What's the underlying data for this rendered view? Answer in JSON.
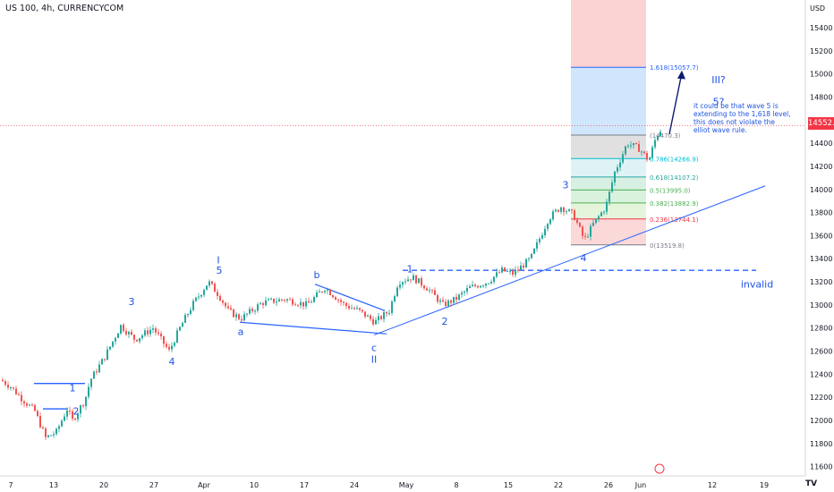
{
  "header": {
    "symbol": "US 100, 4h, CURRENCYCOM"
  },
  "price_tag": "14552.3",
  "note": "it could be that wave 5 is extending to the 1,618 level, this does not violate the elliot wave rule.",
  "logo": "TV",
  "colors": {
    "up": "#26a69a",
    "down": "#ef5350",
    "blue": "#2962ff",
    "label": "#1e53e5",
    "pricered": "#f23645"
  },
  "chart_data": {
    "type": "candlestick",
    "title": "US 100, 4h, CURRENCYCOM",
    "ylabel": "USD",
    "ylim": [
      11520,
      15640
    ],
    "y_ticks": [
      11600,
      11800,
      12000,
      12200,
      12400,
      12600,
      12800,
      13000,
      13200,
      13400,
      13600,
      13800,
      14000,
      14200,
      14400,
      14600,
      14800,
      15000,
      15200,
      15400
    ],
    "x_ticks": [
      "7",
      "13",
      "20",
      "27",
      "Apr",
      "10",
      "17",
      "24",
      "May",
      "8",
      "15",
      "22",
      "26",
      "Jun",
      "12",
      "19"
    ],
    "last_price": 14552.3,
    "path_x": [
      0,
      10,
      22,
      38,
      50,
      62,
      74,
      80,
      94,
      100,
      116,
      134,
      150,
      170,
      188,
      200,
      214,
      232,
      244,
      254,
      268,
      292,
      318,
      342,
      362,
      384,
      400,
      418,
      434,
      444,
      460,
      476,
      494,
      508,
      524,
      544,
      560,
      572,
      592,
      612,
      626,
      640,
      652,
      662,
      676,
      686,
      700,
      714,
      724,
      732,
      740
    ],
    "path_y": [
      12350,
      12300,
      12200,
      12080,
      11850,
      11900,
      12100,
      12000,
      12180,
      12350,
      12550,
      12820,
      12700,
      12800,
      12600,
      12800,
      13000,
      13200,
      13080,
      12950,
      12880,
      13020,
      13050,
      13000,
      13150,
      13000,
      12950,
      12850,
      12950,
      13200,
      13240,
      13150,
      13000,
      13050,
      13150,
      13200,
      13300,
      13270,
      13400,
      13750,
      13850,
      13780,
      13560,
      13700,
      13850,
      14150,
      14400,
      14350,
      14250,
      14450,
      14552.3
    ],
    "fib_levels": [
      {
        "label": "1.618(15057.7)",
        "value": 15057.7
      },
      {
        "label": "(14470.3)",
        "value": 14470.3
      },
      {
        "label": "0.786(14266.9)",
        "value": 14266.9
      },
      {
        "label": "0.618(14107.2)",
        "value": 14107.2
      },
      {
        "label": "0.5(13995.0)",
        "value": 13995.0
      },
      {
        "label": "0.382(13882.9)",
        "value": 13882.9
      },
      {
        "label": "0.236(13744.1)",
        "value": 13744.1
      },
      {
        "label": "0(13519.8)",
        "value": 13519.8
      }
    ],
    "invalid_level": 13300,
    "wave_labels": [
      "2",
      "1",
      "3",
      "4",
      "I",
      "5",
      "a",
      "b",
      "c",
      "II",
      "1",
      "2",
      "3",
      "4",
      "III?",
      "5?"
    ],
    "invalid_label": "invalid"
  }
}
